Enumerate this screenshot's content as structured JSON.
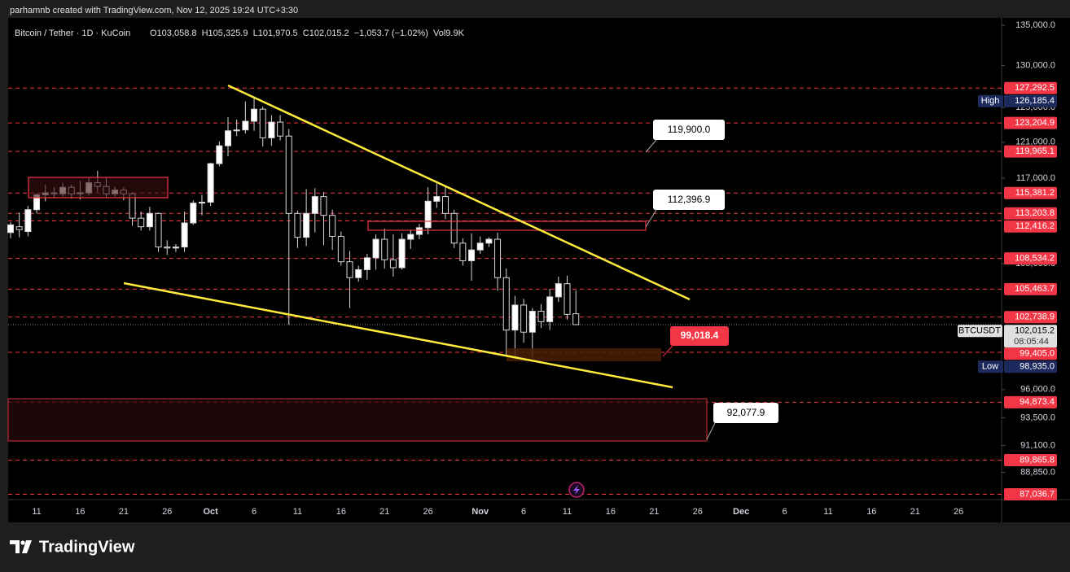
{
  "header": {
    "author_line": "parhamnb created with TradingView.com, Nov 12, 2025 19:24 UTC+3:30"
  },
  "chart_data": {
    "type": "candlestick",
    "symbol": "Bitcoin / Tether · 1D · KuCoin",
    "legend": "O103,058.8  H105,325.9  L101,970.5  C102,015.2  −1,053.7 (−1.02%)  Vol9.9K",
    "log_scale": true,
    "ylim": [
      86611,
      135928
    ],
    "yticks": [
      {
        "value": 135000,
        "label": "135,000.0"
      },
      {
        "value": 130000,
        "label": "130,000.0"
      },
      {
        "value": 125000,
        "label": "125,000.0"
      },
      {
        "value": 121000,
        "label": "121,000.0"
      },
      {
        "value": 117000,
        "label": "117,000.0"
      },
      {
        "value": 108000,
        "label": "108,000.0"
      },
      {
        "value": 96000,
        "label": "96,000.0"
      },
      {
        "value": 93500,
        "label": "93,500.0"
      },
      {
        "value": 91100,
        "label": "91,100.0"
      },
      {
        "value": 88850,
        "label": "88,850.0"
      }
    ],
    "categories": [
      null,
      null,
      null,
      "11",
      null,
      null,
      null,
      null,
      "16",
      null,
      null,
      null,
      null,
      "21",
      null,
      null,
      null,
      null,
      "26",
      null,
      null,
      null,
      null,
      "Oct",
      null,
      null,
      null,
      null,
      "6",
      null,
      null,
      null,
      null,
      "11",
      null,
      null,
      null,
      null,
      "16",
      null,
      null,
      null,
      null,
      "21",
      null,
      null,
      null,
      null,
      "26",
      null,
      null,
      null,
      null,
      null,
      "Nov",
      null,
      null,
      null,
      null,
      "6",
      null,
      null,
      null,
      null,
      "11",
      null,
      null,
      null,
      null,
      "16",
      null,
      null,
      null,
      null,
      "21",
      null,
      null,
      null,
      null,
      "26",
      null,
      null,
      null,
      null,
      "Dec",
      null,
      null,
      null,
      null,
      "6",
      null,
      null,
      null,
      null,
      "11",
      null,
      null,
      null,
      null,
      "16",
      null,
      null,
      null,
      null,
      "21",
      null,
      null,
      null,
      null,
      "26",
      null,
      null
    ],
    "open": [
      111200,
      111800,
      111300,
      113600,
      115200,
      115400,
      115300,
      116000,
      115300,
      115400,
      116500,
      116100,
      115300,
      115700,
      115300,
      112700,
      111800,
      113200,
      109700,
      109600,
      109700,
      112200,
      114300,
      114400,
      118600,
      120600,
      122300,
      122400,
      123400,
      124800,
      121500,
      123300,
      121700,
      113200,
      110700,
      113200,
      115000,
      113000,
      110800,
      108200,
      106600,
      107400,
      108600,
      110500,
      108400,
      107600,
      110500,
      111000,
      111700,
      114500,
      115000,
      113200,
      110100,
      108300,
      109400,
      110100,
      110500,
      106600,
      101500,
      103900,
      101300,
      103300,
      102300,
      104700,
      106000,
      103058.8,
      null,
      null,
      null,
      null,
      null,
      null,
      null,
      null,
      null,
      null,
      null,
      null,
      null,
      null,
      null,
      null,
      null,
      null,
      null,
      null,
      null,
      null,
      null,
      null,
      null,
      null,
      null,
      null,
      null,
      null,
      null,
      null,
      null,
      null,
      null,
      null,
      null,
      null,
      null,
      null,
      null,
      null,
      null,
      null,
      null,
      null
    ],
    "high": [
      112300,
      113300,
      114000,
      115300,
      116300,
      116000,
      116500,
      116300,
      116700,
      117000,
      117800,
      117100,
      116100,
      116000,
      115500,
      113400,
      113900,
      113300,
      110400,
      110000,
      113400,
      114600,
      115200,
      118700,
      121100,
      123900,
      123600,
      125700,
      126100,
      125100,
      124100,
      124100,
      122500,
      113500,
      115800,
      115900,
      115500,
      113600,
      111300,
      109300,
      107800,
      109000,
      111000,
      111600,
      111000,
      111100,
      111500,
      112100,
      116000,
      116400,
      116100,
      113600,
      110600,
      111100,
      110800,
      110700,
      111200,
      107500,
      104800,
      104500,
      103600,
      104000,
      105500,
      106700,
      106800,
      105325.9,
      null,
      null,
      null,
      null,
      null,
      null,
      null,
      null,
      null,
      null,
      null,
      null,
      null,
      null,
      null,
      null,
      null,
      null,
      null,
      null,
      null,
      null,
      null,
      null,
      null,
      null,
      null,
      null,
      null,
      null,
      null,
      null,
      null,
      null,
      null,
      null,
      null,
      null,
      null,
      null,
      null,
      null,
      null,
      null,
      null,
      null
    ],
    "low": [
      110600,
      110700,
      110800,
      113200,
      114500,
      114900,
      115000,
      114800,
      114700,
      115100,
      115500,
      114900,
      115000,
      114600,
      111900,
      111400,
      111400,
      109200,
      108900,
      109200,
      109200,
      112000,
      113000,
      114000,
      118300,
      119400,
      121700,
      122000,
      122300,
      120500,
      120600,
      121200,
      102000,
      109600,
      109800,
      111200,
      109900,
      109400,
      107800,
      103600,
      106200,
      106400,
      107400,
      107500,
      106700,
      107400,
      109500,
      110500,
      111000,
      113800,
      112600,
      109600,
      107800,
      106300,
      109000,
      109700,
      105300,
      99000,
      98900,
      100300,
      98935,
      101700,
      101500,
      104200,
      102500,
      101970.5,
      null,
      null,
      null,
      null,
      null,
      null,
      null,
      null,
      null,
      null,
      null,
      null,
      null,
      null,
      null,
      null,
      null,
      null,
      null,
      null,
      null,
      null,
      null,
      null,
      null,
      null,
      null,
      null,
      null,
      null,
      null,
      null,
      null,
      null,
      null,
      null,
      null,
      null,
      null,
      null,
      null,
      null,
      null,
      null,
      null,
      null
    ],
    "close": [
      112000,
      111500,
      113600,
      115200,
      115400,
      115300,
      116000,
      115300,
      115400,
      116500,
      116100,
      115300,
      115700,
      115300,
      112700,
      111800,
      113200,
      109700,
      109600,
      109700,
      112200,
      114300,
      114400,
      118600,
      120600,
      122300,
      122400,
      123400,
      124800,
      121500,
      123300,
      121700,
      113200,
      110700,
      113200,
      115000,
      113000,
      110800,
      108200,
      106600,
      107400,
      108600,
      110500,
      108400,
      107600,
      110500,
      111000,
      111700,
      114500,
      115000,
      113200,
      110100,
      108300,
      109400,
      110100,
      110500,
      106600,
      101500,
      103900,
      101300,
      103300,
      102300,
      104700,
      106000,
      103000,
      102015.2,
      null,
      null,
      null,
      null,
      null,
      null,
      null,
      null,
      null,
      null,
      null,
      null,
      null,
      null,
      null,
      null,
      null,
      null,
      null,
      null,
      null,
      null,
      null,
      null,
      null,
      null,
      null,
      null,
      null,
      null,
      null,
      null,
      null,
      null,
      null,
      null,
      null,
      null,
      null,
      null,
      null,
      null,
      null,
      null,
      null,
      null
    ],
    "up_color": "#ffffff",
    "down_color": "#000000",
    "levels": {
      "color": "#f23645",
      "values": [
        127292.5,
        123204.9,
        119965.1,
        115381.2,
        113203.8,
        112416.2,
        108534.2,
        105463.7,
        102738.9,
        99405.0,
        94873.4,
        89865.8,
        87036.7
      ],
      "value_labels": [
        "127,292.5",
        "123,204.9",
        "119,965.1",
        "115,381.2",
        "113,203.8",
        "112,416.2",
        "108,534.2",
        "105,463.7",
        "102,738.9",
        "99,405.0",
        "94,873.4",
        "89,865.8",
        "87,036.7"
      ]
    },
    "high_marker": {
      "label": "High",
      "value": 126185.4,
      "value_label": "126,185.4"
    },
    "low_marker": {
      "label": "Low",
      "value": 98935,
      "value_label": "98,935.0"
    },
    "last_price": {
      "symbol": "BTCUSDT",
      "value": 102015.2,
      "value_label": "102,015.2",
      "countdown": "08:05:44"
    },
    "annotations": [
      "119,900.0",
      "112,396.9",
      "99,018.4",
      "92,077.9"
    ]
  },
  "footer": {
    "brand": "TradingView"
  }
}
